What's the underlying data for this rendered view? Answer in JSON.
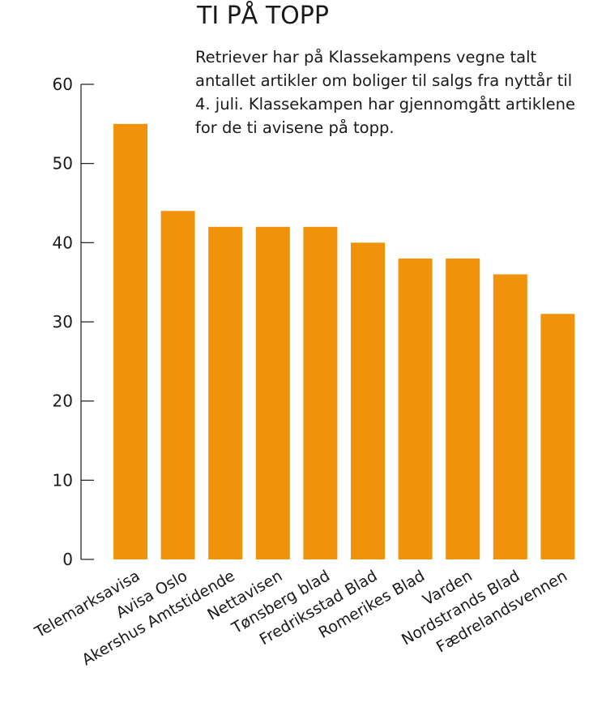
{
  "chart_data": {
    "type": "bar",
    "title": "TI PÅ TOPP",
    "subtitle": "Retriever har på Klassekampens vegne talt antallet artikler om boliger til salgs fra nyttår til 4. juli. Klassekampen har gjennomgått artiklene for de ti avisene på topp.",
    "categories": [
      "Telemarksavisa",
      "Avisa Oslo",
      "Akershus Amtstidende",
      "Nettavisen",
      "Tønsberg blad",
      "Fredriksstad Blad",
      "Romerikes Blad",
      "Varden",
      "Nordstrands Blad",
      "Fædrelandsvennen"
    ],
    "values": [
      55,
      44,
      42,
      42,
      42,
      40,
      38,
      38,
      36,
      31
    ],
    "yticks": [
      "0",
      "10",
      "20",
      "30",
      "40",
      "50",
      "60"
    ],
    "ylim": [
      0,
      60
    ],
    "xlabel": "",
    "ylabel": "",
    "legend": "none",
    "bar_color": "#f0920a",
    "axis_color": "#1a1a1a"
  }
}
